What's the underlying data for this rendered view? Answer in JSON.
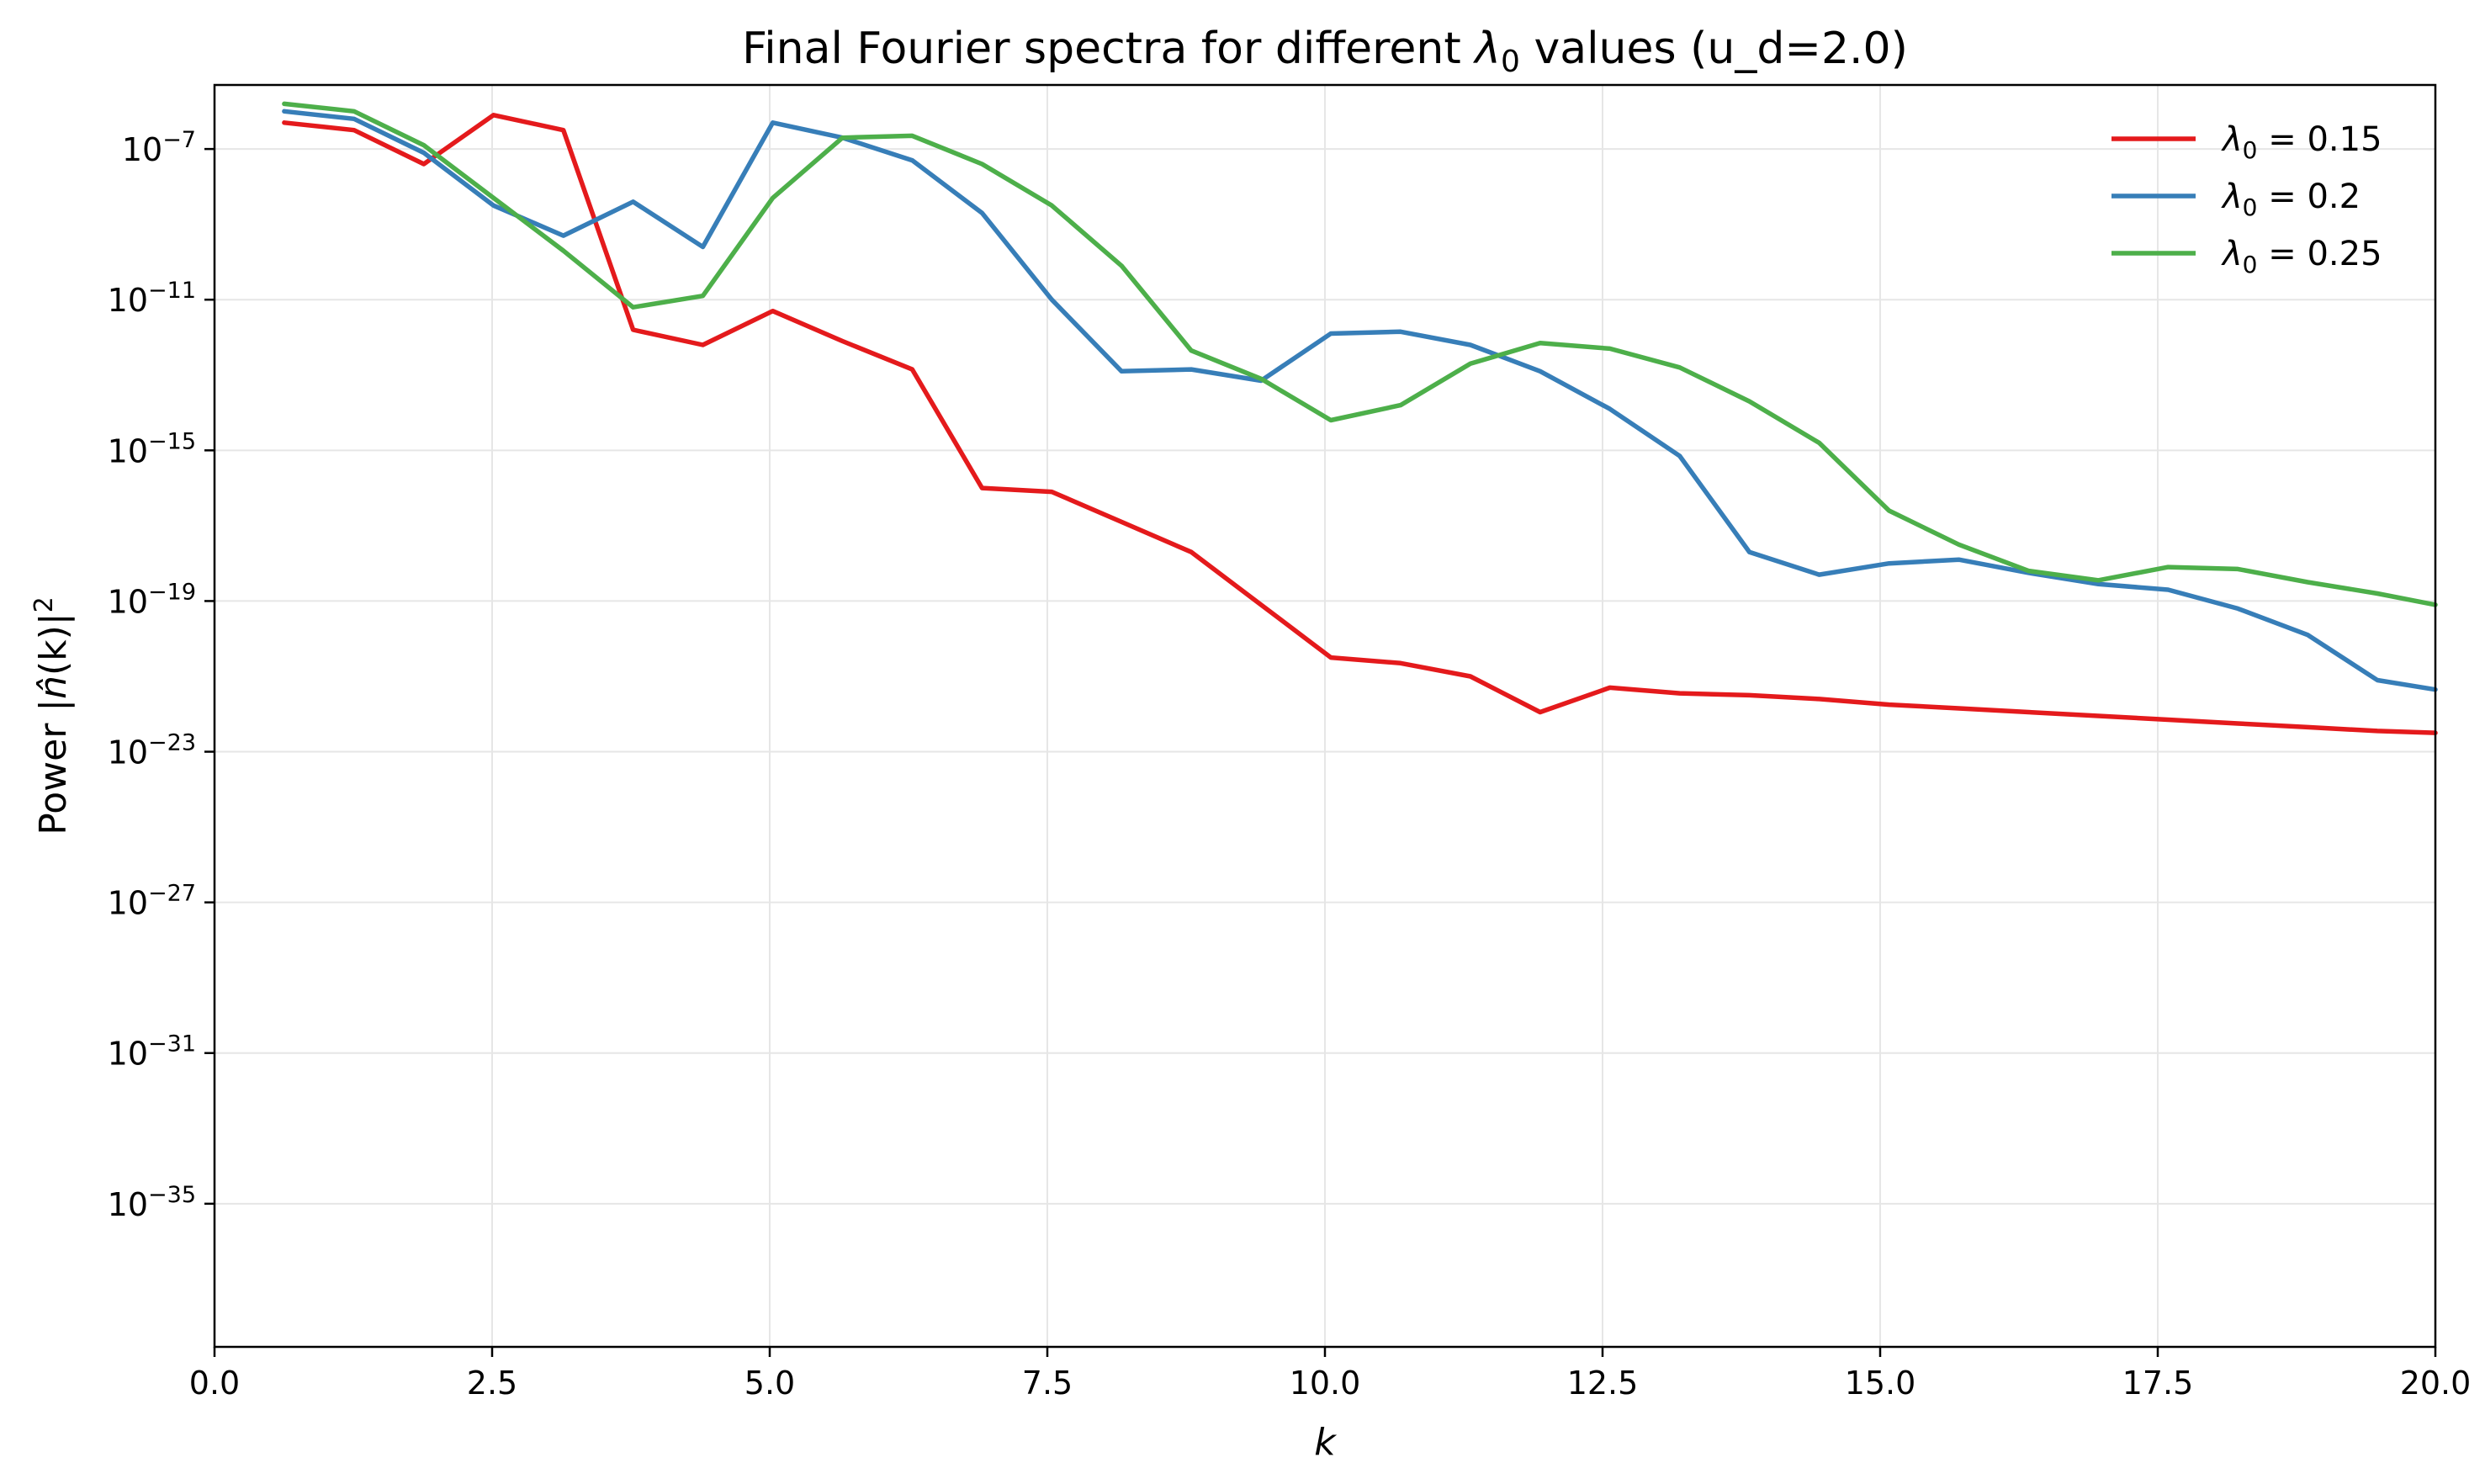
{
  "chart_data": {
    "type": "line",
    "title": {
      "prefix": "Final Fourier spectra for different ",
      "symbol": "λ",
      "subscript": "0",
      "suffix": " values (u_d=2.0)"
    },
    "xlabel": "k",
    "ylabel": {
      "prefix": "Power |",
      "nhat": "n̂",
      "args": "(k)|",
      "sup": "2"
    },
    "x_scale": "linear",
    "y_scale": "log",
    "xlim": [
      0,
      20
    ],
    "ylim_log10": [
      -38.8,
      -5.3
    ],
    "x_ticks": [
      "0.0",
      "2.5",
      "5.0",
      "7.5",
      "10.0",
      "12.5",
      "15.0",
      "17.5",
      "20.0"
    ],
    "y_ticks": [
      {
        "base": "10",
        "exp": "−7",
        "log10": -7
      },
      {
        "base": "10",
        "exp": "−11",
        "log10": -11
      },
      {
        "base": "10",
        "exp": "−15",
        "log10": -15
      },
      {
        "base": "10",
        "exp": "−19",
        "log10": -19
      },
      {
        "base": "10",
        "exp": "−23",
        "log10": -23
      },
      {
        "base": "10",
        "exp": "−27",
        "log10": -27
      },
      {
        "base": "10",
        "exp": "−31",
        "log10": -31
      },
      {
        "base": "10",
        "exp": "−35",
        "log10": -35
      }
    ],
    "grid": true,
    "legend_position": "top-right",
    "x": [
      0.628,
      1.257,
      1.885,
      2.513,
      3.142,
      3.77,
      4.398,
      5.027,
      5.655,
      6.283,
      6.912,
      7.54,
      8.168,
      8.796,
      9.425,
      10.053,
      10.681,
      11.31,
      11.938,
      12.566,
      13.195,
      13.823,
      14.451,
      15.08,
      15.708,
      16.336,
      16.965,
      17.593,
      18.221,
      18.85,
      19.478,
      20.0
    ],
    "series": [
      {
        "name": "0.15",
        "label_symbol": "λ",
        "label_sub": "0",
        "label_eq": " = ",
        "color": "#e41a1c",
        "log10_values": [
          -6.3,
          -6.5,
          -7.4,
          -6.1,
          -6.5,
          -11.8,
          -12.2,
          -11.3,
          -12.1,
          -12.85,
          -16.0,
          -16.1,
          -16.9,
          -17.7,
          -19.1,
          -20.5,
          -20.65,
          -21.0,
          -21.95,
          -21.3,
          -21.45,
          -21.5,
          -21.6,
          -21.75,
          -21.85,
          -21.95,
          -22.05,
          -22.15,
          -22.25,
          -22.35,
          -22.45,
          -22.5
        ]
      },
      {
        "name": "0.2",
        "label_symbol": "λ",
        "label_sub": "0",
        "label_eq": " = ",
        "color": "#377eb8",
        "log10_values": [
          -6.0,
          -6.2,
          -7.1,
          -8.5,
          -9.3,
          -8.4,
          -9.6,
          -6.3,
          -6.7,
          -7.3,
          -8.7,
          -11.0,
          -12.9,
          -12.85,
          -13.15,
          -11.9,
          -11.85,
          -12.2,
          -12.9,
          -13.9,
          -15.15,
          -17.7,
          -18.3,
          -18.0,
          -17.9,
          -18.25,
          -18.55,
          -18.7,
          -19.2,
          -19.9,
          -21.1,
          -21.35
        ]
      },
      {
        "name": "0.25",
        "label_symbol": "λ",
        "label_sub": "0",
        "label_eq": " = ",
        "color": "#4daf4a",
        "log10_values": [
          -5.8,
          -6.0,
          -6.9,
          -8.3,
          -9.7,
          -11.2,
          -10.9,
          -8.3,
          -6.7,
          -6.65,
          -7.4,
          -8.5,
          -10.1,
          -12.35,
          -13.1,
          -14.2,
          -13.8,
          -12.7,
          -12.15,
          -12.3,
          -12.8,
          -13.7,
          -14.8,
          -16.6,
          -17.5,
          -18.2,
          -18.45,
          -18.1,
          -18.15,
          -18.5,
          -18.8,
          -19.1
        ]
      }
    ]
  }
}
